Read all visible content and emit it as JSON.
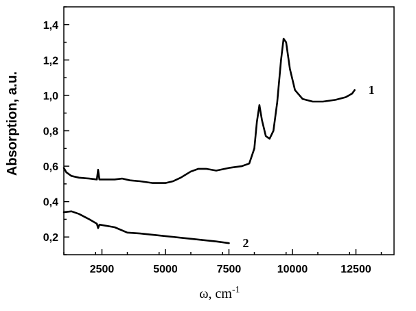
{
  "chart_data": {
    "type": "line",
    "xlabel": "ω, cm",
    "xlabel_sup": "-1",
    "ylabel": "Absorption, a.u.",
    "xlim": [
      1000,
      14000
    ],
    "ylim": [
      0.1,
      1.5
    ],
    "x_ticks": [
      {
        "value": 2500,
        "label": "2500"
      },
      {
        "value": 5000,
        "label": "5000"
      },
      {
        "value": 7500,
        "label": "7500"
      },
      {
        "value": 10000,
        "label": "10000"
      },
      {
        "value": 12500,
        "label": "12500"
      }
    ],
    "y_ticks": [
      {
        "value": 0.2,
        "label": "0,2"
      },
      {
        "value": 0.4,
        "label": "0,4"
      },
      {
        "value": 0.6,
        "label": "0,6"
      },
      {
        "value": 0.8,
        "label": "0,8"
      },
      {
        "value": 1.0,
        "label": "1,0"
      },
      {
        "value": 1.2,
        "label": "1,2"
      },
      {
        "value": 1.4,
        "label": "1,4"
      }
    ],
    "grid": false,
    "legend": "none",
    "series": [
      {
        "label": "1",
        "color": "#000000",
        "points": [
          [
            1000,
            0.59
          ],
          [
            1100,
            0.565
          ],
          [
            1300,
            0.545
          ],
          [
            1600,
            0.535
          ],
          [
            2000,
            0.53
          ],
          [
            2300,
            0.525
          ],
          [
            2350,
            0.58
          ],
          [
            2400,
            0.525
          ],
          [
            3000,
            0.525
          ],
          [
            3300,
            0.53
          ],
          [
            3600,
            0.52
          ],
          [
            4000,
            0.515
          ],
          [
            4500,
            0.505
          ],
          [
            5000,
            0.505
          ],
          [
            5300,
            0.515
          ],
          [
            5600,
            0.535
          ],
          [
            6000,
            0.57
          ],
          [
            6300,
            0.585
          ],
          [
            6600,
            0.585
          ],
          [
            7000,
            0.575
          ],
          [
            7500,
            0.59
          ],
          [
            8000,
            0.6
          ],
          [
            8300,
            0.615
          ],
          [
            8500,
            0.7
          ],
          [
            8600,
            0.85
          ],
          [
            8700,
            0.945
          ],
          [
            8800,
            0.86
          ],
          [
            8950,
            0.77
          ],
          [
            9100,
            0.755
          ],
          [
            9250,
            0.8
          ],
          [
            9400,
            0.96
          ],
          [
            9550,
            1.2
          ],
          [
            9650,
            1.32
          ],
          [
            9750,
            1.3
          ],
          [
            9900,
            1.15
          ],
          [
            10100,
            1.03
          ],
          [
            10400,
            0.98
          ],
          [
            10800,
            0.965
          ],
          [
            11200,
            0.965
          ],
          [
            11700,
            0.975
          ],
          [
            12100,
            0.99
          ],
          [
            12350,
            1.01
          ],
          [
            12450,
            1.03
          ]
        ]
      },
      {
        "label": "2",
        "color": "#000000",
        "points": [
          [
            1000,
            0.34
          ],
          [
            1300,
            0.345
          ],
          [
            1600,
            0.33
          ],
          [
            2000,
            0.3
          ],
          [
            2300,
            0.275
          ],
          [
            2350,
            0.25
          ],
          [
            2400,
            0.27
          ],
          [
            3000,
            0.255
          ],
          [
            3500,
            0.225
          ],
          [
            4000,
            0.22
          ],
          [
            5000,
            0.205
          ],
          [
            6000,
            0.19
          ],
          [
            7000,
            0.175
          ],
          [
            7500,
            0.165
          ]
        ]
      }
    ]
  }
}
